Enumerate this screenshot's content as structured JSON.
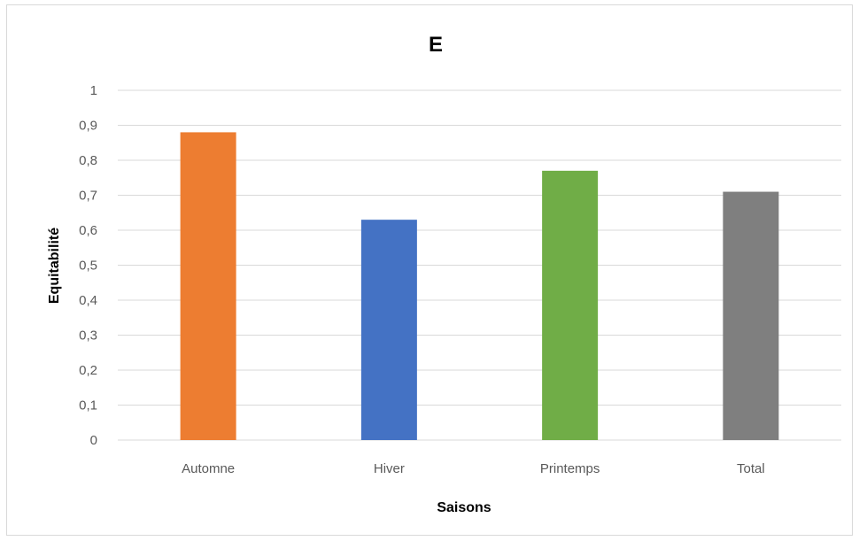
{
  "chart_data": {
    "type": "bar",
    "title": "E",
    "xlabel": "Saisons",
    "ylabel": "Equitabilité",
    "categories": [
      "Automne",
      "Hiver",
      "Printemps",
      "Total"
    ],
    "values": [
      0.88,
      0.63,
      0.77,
      0.71
    ],
    "colors": [
      "#ed7d31",
      "#4472c4",
      "#70ad47",
      "#7f7f7f"
    ],
    "ylim": [
      0,
      1
    ],
    "yticks": [
      0,
      0.1,
      0.2,
      0.3,
      0.4,
      0.5,
      0.6,
      0.7,
      0.8,
      0.9,
      1
    ],
    "ytick_labels": [
      "0",
      "0,1",
      "0,2",
      "0,3",
      "0,4",
      "0,5",
      "0,6",
      "0,7",
      "0,8",
      "0,9",
      "1"
    ],
    "grid": true,
    "legend": "none"
  }
}
